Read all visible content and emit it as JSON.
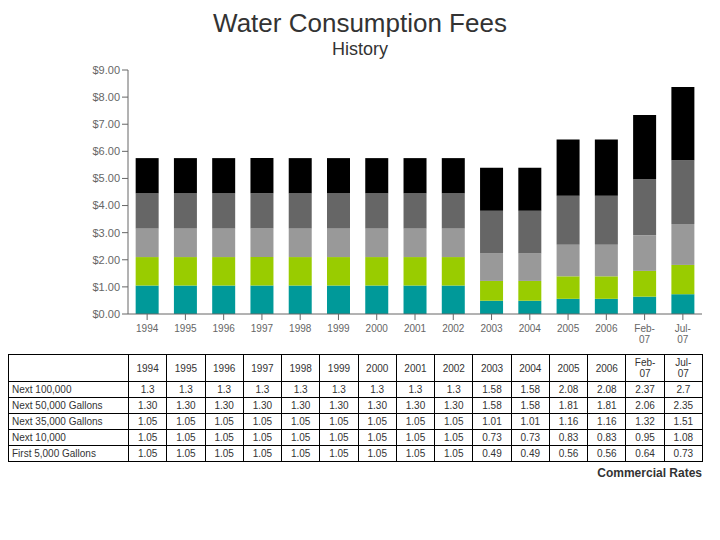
{
  "chart_data": {
    "type": "bar",
    "title": "Water Consumption Fees",
    "subtitle": "History",
    "stacked": true,
    "grid": false,
    "categories": [
      "1994",
      "1995",
      "1996",
      "1997",
      "1998",
      "1999",
      "2000",
      "2001",
      "2002",
      "2003",
      "2004",
      "2005",
      "2006",
      "Feb-\n07",
      "Jul-\n07"
    ],
    "series": [
      {
        "name": "First 5,000 Gallons",
        "color": "#009999",
        "values": [
          1.05,
          1.05,
          1.05,
          1.05,
          1.05,
          1.05,
          1.05,
          1.05,
          1.05,
          0.49,
          0.49,
          0.56,
          0.56,
          0.64,
          0.73
        ],
        "value_labels": [
          "1.05",
          "1.05",
          "1.05",
          "1.05",
          "1.05",
          "1.05",
          "1.05",
          "1.05",
          "1.05",
          "0.49",
          "0.49",
          "0.56",
          "0.56",
          "0.64",
          "0.73"
        ]
      },
      {
        "name": "Next 10,000",
        "color": "#99cc00",
        "values": [
          1.05,
          1.05,
          1.05,
          1.05,
          1.05,
          1.05,
          1.05,
          1.05,
          1.05,
          0.73,
          0.73,
          0.83,
          0.83,
          0.95,
          1.08
        ],
        "value_labels": [
          "1.05",
          "1.05",
          "1.05",
          "1.05",
          "1.05",
          "1.05",
          "1.05",
          "1.05",
          "1.05",
          "0.73",
          "0.73",
          "0.83",
          "0.83",
          "0.95",
          "1.08"
        ]
      },
      {
        "name": "Next 35,000 Gallons",
        "color": "#999999",
        "values": [
          1.05,
          1.05,
          1.05,
          1.05,
          1.05,
          1.05,
          1.05,
          1.05,
          1.05,
          1.01,
          1.01,
          1.16,
          1.16,
          1.32,
          1.51
        ],
        "value_labels": [
          "1.05",
          "1.05",
          "1.05",
          "1.05",
          "1.05",
          "1.05",
          "1.05",
          "1.05",
          "1.05",
          "1.01",
          "1.01",
          "1.16",
          "1.16",
          "1.32",
          "1.51"
        ]
      },
      {
        "name": "Next 50,000 Gallons",
        "color": "#666666",
        "values": [
          1.3,
          1.3,
          1.3,
          1.3,
          1.3,
          1.3,
          1.3,
          1.3,
          1.3,
          1.58,
          1.58,
          1.81,
          1.81,
          2.06,
          2.35
        ],
        "value_labels": [
          "1.30",
          "1.30",
          "1.30",
          "1.30",
          "1.30",
          "1.30",
          "1.30",
          "1.30",
          "1.30",
          "1.58",
          "1.58",
          "1.81",
          "1.81",
          "2.06",
          "2.35"
        ]
      },
      {
        "name": "Next 100,000",
        "color": "#000000",
        "values": [
          1.3,
          1.3,
          1.3,
          1.3,
          1.3,
          1.3,
          1.3,
          1.3,
          1.3,
          1.58,
          1.58,
          2.08,
          2.08,
          2.37,
          2.7
        ],
        "value_labels": [
          "1.3",
          "1.3",
          "1.3",
          "1.3",
          "1.3",
          "1.3",
          "1.3",
          "1.3",
          "1.3",
          "1.58",
          "1.58",
          "2.08",
          "2.08",
          "2.37",
          "2.7"
        ]
      }
    ],
    "ylim": [
      0,
      9.0
    ],
    "yticks": [
      {
        "value": 0.0,
        "label": "$0.00"
      },
      {
        "value": 1.0,
        "label": "$1.00"
      },
      {
        "value": 2.0,
        "label": "$2.00"
      },
      {
        "value": 3.0,
        "label": "$3.00"
      },
      {
        "value": 4.0,
        "label": "$4.00"
      },
      {
        "value": 5.0,
        "label": "$5.00"
      },
      {
        "value": 6.0,
        "label": "$6.00"
      },
      {
        "value": 7.0,
        "label": "$7.00"
      },
      {
        "value": 8.0,
        "label": "$8.00"
      },
      {
        "value": 9.0,
        "label": "$9.00"
      }
    ],
    "annotations": [
      "Commercial Rates"
    ]
  }
}
